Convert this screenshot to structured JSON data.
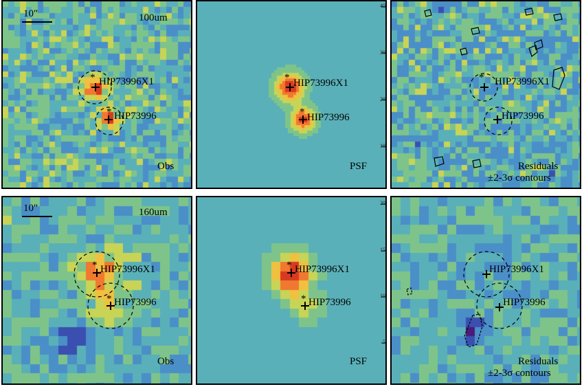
{
  "sources": {
    "primary": "HIP73996X1",
    "secondary": "HIP73996"
  },
  "scale_bar_label": "10\"",
  "rows": [
    {
      "band": "100um",
      "panels": [
        {
          "label": "Obs"
        },
        {
          "label": "PSF"
        },
        {
          "label_line1": "Residuals",
          "label_line2": "±2-3σ contours"
        }
      ],
      "psf_axis_ticks": [
        "40",
        "30",
        "20",
        "10"
      ]
    },
    {
      "band": "160um",
      "panels": [
        {
          "label": "Obs"
        },
        {
          "label": "PSF"
        },
        {
          "label_line1": "Residuals",
          "label_line2": "±2-3σ contours"
        }
      ],
      "psf_axis_ticks": [
        "20",
        "15",
        "10",
        "5"
      ]
    }
  ],
  "colormap": [
    "#4a1a7a",
    "#3a4fb0",
    "#4a8fc8",
    "#5ab0b8",
    "#7ec48a",
    "#c8d456",
    "#f0c040",
    "#f07830",
    "#d83a20"
  ]
}
